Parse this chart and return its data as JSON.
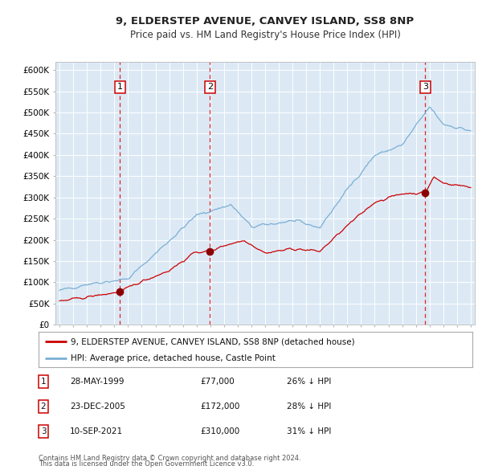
{
  "title": "9, ELDERSTEP AVENUE, CANVEY ISLAND, SS8 8NP",
  "subtitle": "Price paid vs. HM Land Registry's House Price Index (HPI)",
  "ylim": [
    0,
    620000
  ],
  "yticks": [
    0,
    50000,
    100000,
    150000,
    200000,
    250000,
    300000,
    350000,
    400000,
    450000,
    500000,
    550000,
    600000
  ],
  "ytick_labels": [
    "£0",
    "£50K",
    "£100K",
    "£150K",
    "£200K",
    "£250K",
    "£300K",
    "£350K",
    "£400K",
    "£450K",
    "£500K",
    "£550K",
    "£600K"
  ],
  "background_color": "#ffffff",
  "plot_bg_color": "#dce9f5",
  "grid_color": "#ffffff",
  "red_line_color": "#cc0000",
  "blue_line_color": "#7bafd4",
  "sale_marker_color": "#8b0000",
  "vline_color": "#dd0000",
  "sale_dates": [
    1999.41,
    2005.98,
    2021.69
  ],
  "sale_prices": [
    77000,
    172000,
    310000
  ],
  "sale_labels": [
    "1",
    "2",
    "3"
  ],
  "legend_entries": [
    "9, ELDERSTEP AVENUE, CANVEY ISLAND, SS8 8NP (detached house)",
    "HPI: Average price, detached house, Castle Point"
  ],
  "table_data": [
    {
      "num": "1",
      "date": "28-MAY-1999",
      "price": "£77,000",
      "hpi": "26% ↓ HPI"
    },
    {
      "num": "2",
      "date": "23-DEC-2005",
      "price": "£172,000",
      "hpi": "28% ↓ HPI"
    },
    {
      "num": "3",
      "date": "10-SEP-2021",
      "price": "£310,000",
      "hpi": "31% ↓ HPI"
    }
  ],
  "footer_line1": "Contains HM Land Registry data © Crown copyright and database right 2024.",
  "footer_line2": "This data is licensed under the Open Government Licence v3.0."
}
